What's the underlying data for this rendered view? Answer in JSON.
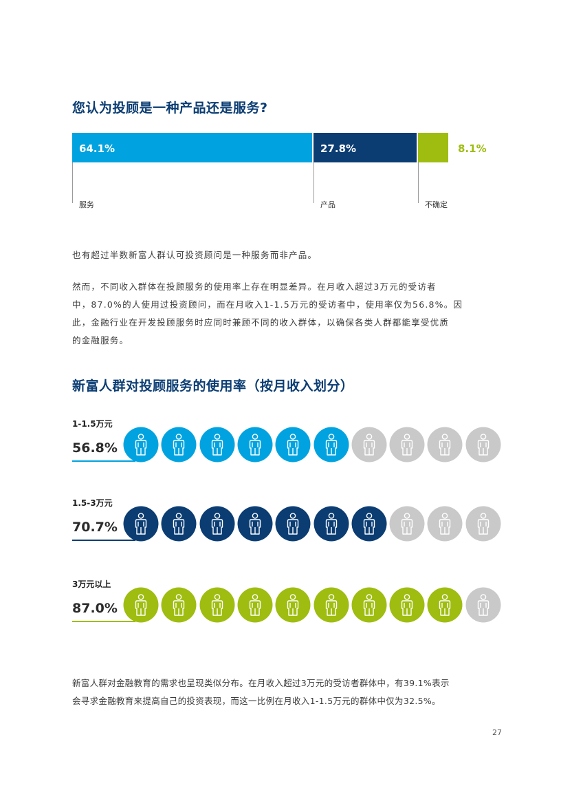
{
  "colors": {
    "heading": "#0b3d73",
    "light_blue": "#00a3e0",
    "dark_blue": "#0b3d73",
    "green": "#9ebd10",
    "grey": "#c9c9c9"
  },
  "section1": {
    "title": "您认为投顾是一种产品还是服务?",
    "chart_data": {
      "type": "bar",
      "stacked": true,
      "orientation": "horizontal",
      "categories": [
        "服务",
        "产品",
        "不确定"
      ],
      "values": [
        64.1,
        27.8,
        8.1
      ],
      "value_labels": [
        "64.1%",
        "27.8%",
        "8.1%"
      ],
      "colors": [
        "#00a3e0",
        "#0b3d73",
        "#9ebd10"
      ]
    }
  },
  "paragraphs": {
    "p1": "也有超过半数新富人群认可投资顾问是一种服务而非产品。",
    "p2_line1": "然而，不同收入群体在投顾服务的使用率上存在明显差异。在月收入超过3万元的受访者",
    "p2_line2": "中，87.0%的人使用过投资顾问，而在月收入1-1.5万元的受访者中，使用率仅为56.8%。因",
    "p2_line3": "此，金融行业在开发投顾服务时应同时兼顾不同的收入群体，以确保各类人群都能享受优质",
    "p2_line4": "的金融服务。",
    "p3_line1": "新富人群对金融教育的需求也呈现类似分布。在月收入超过3万元的受访者群体中，有39.1%表示",
    "p3_line2": "会寻求金融教育来提高自己的投资表现，而这一比例在月收入1-1.5万元的群体中仅为32.5%。"
  },
  "section2": {
    "title": "新富人群对投顾服务的使用率（按月收入划分）",
    "chart_data": {
      "type": "bar",
      "display": "pictogram",
      "icons_per_row": 10,
      "categories": [
        "1-1.5万元",
        "1.5-3万元",
        "3万元以上"
      ],
      "values": [
        56.8,
        70.7,
        87.0
      ],
      "value_labels": [
        "56.8%",
        "70.7%",
        "87.0%"
      ],
      "filled_icons": [
        6,
        7,
        9
      ],
      "colors": [
        "#00a3e0",
        "#0b3d73",
        "#9ebd10"
      ],
      "empty_color": "#c9c9c9"
    }
  },
  "page_number": "27"
}
